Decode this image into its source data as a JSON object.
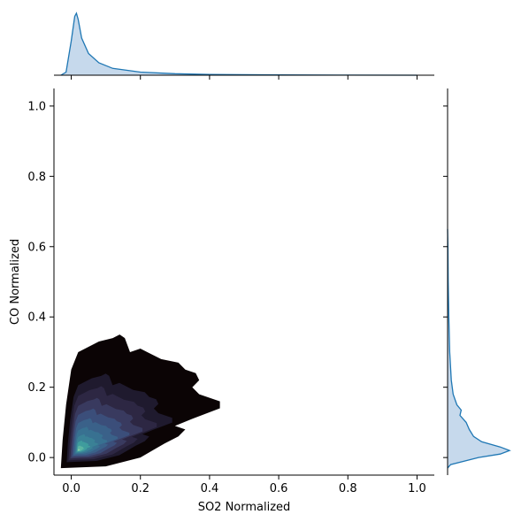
{
  "chart_data": {
    "type": "kde_joint",
    "xlabel": "SO2 Normalized",
    "ylabel": "CO Normalized",
    "xlim": [
      -0.05,
      1.05
    ],
    "ylim": [
      -0.05,
      1.05
    ],
    "xticks": [
      "0.0",
      "0.2",
      "0.4",
      "0.6",
      "0.8",
      "1.0"
    ],
    "yticks": [
      "0.0",
      "0.2",
      "0.4",
      "0.6",
      "0.8",
      "1.0"
    ],
    "joint": {
      "kind": "filled density contours",
      "peak": {
        "x": 0.02,
        "y": 0.02
      },
      "extent": {
        "x_max": 0.43,
        "y_max": 0.35
      },
      "colormap": "mako"
    },
    "marginal_x": {
      "peak_x": 0.015,
      "points": [
        [
          -0.03,
          0
        ],
        [
          -0.015,
          0.05
        ],
        [
          0.0,
          0.55
        ],
        [
          0.01,
          0.95
        ],
        [
          0.015,
          1.0
        ],
        [
          0.02,
          0.9
        ],
        [
          0.03,
          0.6
        ],
        [
          0.05,
          0.35
        ],
        [
          0.08,
          0.2
        ],
        [
          0.12,
          0.11
        ],
        [
          0.2,
          0.05
        ],
        [
          0.3,
          0.025
        ],
        [
          0.4,
          0.012
        ],
        [
          0.6,
          0.004
        ],
        [
          0.8,
          0.002
        ],
        [
          1.0,
          0.0
        ]
      ]
    },
    "marginal_y": {
      "peak_y": 0.02,
      "points": [
        [
          -0.03,
          0
        ],
        [
          -0.02,
          0.05
        ],
        [
          0.0,
          0.5
        ],
        [
          0.01,
          0.85
        ],
        [
          0.02,
          1.0
        ],
        [
          0.03,
          0.85
        ],
        [
          0.045,
          0.55
        ],
        [
          0.06,
          0.42
        ],
        [
          0.08,
          0.35
        ],
        [
          0.1,
          0.3
        ],
        [
          0.12,
          0.2
        ],
        [
          0.135,
          0.22
        ],
        [
          0.15,
          0.15
        ],
        [
          0.18,
          0.09
        ],
        [
          0.22,
          0.06
        ],
        [
          0.3,
          0.035
        ],
        [
          0.4,
          0.02
        ],
        [
          0.5,
          0.01
        ],
        [
          0.6,
          0.005
        ],
        [
          0.65,
          0.0
        ]
      ]
    },
    "colors": {
      "marginal_line": "#1f77b4",
      "marginal_fill": "#c6d9ec",
      "levels": [
        "#0b0405",
        "#1f1a2e",
        "#2d2743",
        "#393a5f",
        "#3b4e7a",
        "#3a6189",
        "#387191",
        "#3a8196",
        "#3f9c9d",
        "#5bb5a2",
        "#8fd0aa"
      ]
    }
  }
}
